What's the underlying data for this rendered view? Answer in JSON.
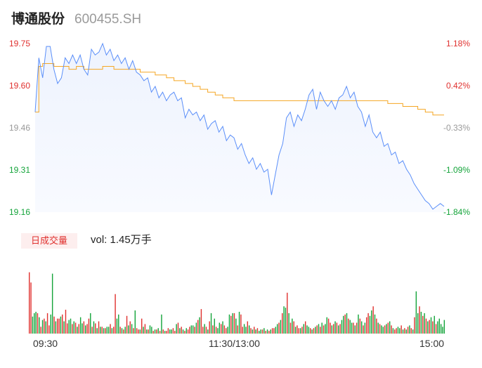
{
  "header": {
    "name": "博通股份",
    "code": "600455.SH"
  },
  "chart_data": {
    "type": "line",
    "price_axis": {
      "ticks": [
        "19.75",
        "19.60",
        "19.46",
        "19.31",
        "19.16"
      ],
      "pct_ticks": [
        "1.18%",
        "0.42%",
        "-0.33%",
        "-1.09%",
        "-1.84%"
      ],
      "tick_colors": [
        "#e0312f",
        "#e0312f",
        "#999999",
        "#14a43a",
        "#14a43a"
      ],
      "range": [
        19.16,
        19.75
      ],
      "prev_close": 19.52
    },
    "series": [
      {
        "color": "#5b8ff9",
        "values": [
          19.51,
          19.7,
          19.63,
          19.74,
          19.74,
          19.66,
          19.61,
          19.63,
          19.7,
          19.68,
          19.71,
          19.68,
          19.71,
          19.66,
          19.64,
          19.73,
          19.71,
          19.72,
          19.75,
          19.71,
          19.73,
          19.69,
          19.71,
          19.68,
          19.7,
          19.66,
          19.69,
          19.65,
          19.64,
          19.62,
          19.63,
          19.58,
          19.6,
          19.56,
          19.58,
          19.55,
          19.57,
          19.58,
          19.55,
          19.56,
          19.49,
          19.52,
          19.5,
          19.51,
          19.48,
          19.5,
          19.45,
          19.47,
          19.48,
          19.44,
          19.46,
          19.41,
          19.43,
          19.42,
          19.38,
          19.4,
          19.36,
          19.33,
          19.35,
          19.31,
          19.33,
          19.3,
          19.31,
          19.22,
          19.29,
          19.36,
          19.4,
          19.49,
          19.51,
          19.46,
          19.5,
          19.48,
          19.52,
          19.57,
          19.59,
          19.52,
          19.58,
          19.55,
          19.53,
          19.55,
          19.52,
          19.56,
          19.57,
          19.6,
          19.56,
          19.58,
          19.53,
          19.51,
          19.46,
          19.5,
          19.44,
          19.42,
          19.44,
          19.39,
          19.4,
          19.36,
          19.37,
          19.33,
          19.34,
          19.31,
          19.29,
          19.26,
          19.24,
          19.22,
          19.2,
          19.19,
          19.17,
          19.18,
          19.19,
          19.18
        ],
        "smooth": false
      },
      {
        "color": "#f5a623",
        "values": [
          19.51,
          19.67,
          19.68,
          19.68,
          19.68,
          19.67,
          19.67,
          19.67,
          19.67,
          19.66,
          19.66,
          19.67,
          19.67,
          19.66,
          19.66,
          19.66,
          19.66,
          19.66,
          19.67,
          19.67,
          19.67,
          19.66,
          19.66,
          19.66,
          19.66,
          19.66,
          19.66,
          19.66,
          19.65,
          19.65,
          19.65,
          19.65,
          19.64,
          19.64,
          19.64,
          19.63,
          19.63,
          19.62,
          19.62,
          19.62,
          19.61,
          19.61,
          19.6,
          19.6,
          19.59,
          19.59,
          19.58,
          19.58,
          19.57,
          19.57,
          19.56,
          19.56,
          19.56,
          19.55,
          19.55,
          19.55,
          19.55,
          19.55,
          19.55,
          19.55,
          19.55,
          19.55,
          19.55,
          19.55,
          19.55,
          19.55,
          19.55,
          19.55,
          19.55,
          19.55,
          19.55,
          19.55,
          19.55,
          19.55,
          19.55,
          19.55,
          19.55,
          19.55,
          19.55,
          19.55,
          19.55,
          19.55,
          19.55,
          19.55,
          19.55,
          19.55,
          19.55,
          19.55,
          19.55,
          19.55,
          19.55,
          19.55,
          19.55,
          19.55,
          19.54,
          19.54,
          19.54,
          19.54,
          19.53,
          19.53,
          19.53,
          19.53,
          19.52,
          19.52,
          19.51,
          19.51,
          19.5,
          19.5,
          19.5,
          19.5
        ]
      }
    ],
    "volume": {
      "tag": "日成交量",
      "summary": "vol: 1.45万手",
      "bar_colors": {
        "up": "#e0312f",
        "down": "#14a43a"
      },
      "values": [
        0.9,
        0.75,
        0.25,
        0.3,
        0.32,
        0.3,
        0.24,
        0.1,
        0.2,
        0.22,
        0.18,
        0.3,
        0.12,
        0.28,
        0.88,
        0.25,
        0.18,
        0.22,
        0.22,
        0.25,
        0.28,
        0.18,
        0.35,
        0.15,
        0.2,
        0.22,
        0.14,
        0.18,
        0.16,
        0.1,
        0.14,
        0.24,
        0.15,
        0.18,
        0.12,
        0.14,
        0.22,
        0.3,
        0.1,
        0.18,
        0.15,
        0.08,
        0.18,
        0.1,
        0.1,
        0.08,
        0.08,
        0.1,
        0.1,
        0.14,
        0.08,
        0.1,
        0.58,
        0.22,
        0.28,
        0.1,
        0.08,
        0.06,
        0.1,
        0.26,
        0.12,
        0.18,
        0.14,
        0.08,
        0.34,
        0.08,
        0.06,
        0.06,
        0.22,
        0.1,
        0.14,
        0.06,
        0.06,
        0.12,
        0.1,
        0.04,
        0.06,
        0.06,
        0.08,
        0.04,
        0.28,
        0.06,
        0.04,
        0.04,
        0.08,
        0.06,
        0.06,
        0.08,
        0.04,
        0.14,
        0.16,
        0.08,
        0.1,
        0.06,
        0.04,
        0.08,
        0.06,
        0.1,
        0.12,
        0.12,
        0.1,
        0.16,
        0.2,
        0.24,
        0.36,
        0.1,
        0.14,
        0.1,
        0.06,
        0.18,
        0.3,
        0.12,
        0.22,
        0.1,
        0.08,
        0.16,
        0.14,
        0.18,
        0.12,
        0.08,
        0.1,
        0.28,
        0.26,
        0.3,
        0.3,
        0.22,
        0.12,
        0.32,
        0.28,
        0.1,
        0.14,
        0.1,
        0.18,
        0.12,
        0.08,
        0.06,
        0.1,
        0.06,
        0.08,
        0.04,
        0.06,
        0.06,
        0.08,
        0.04,
        0.06,
        0.04,
        0.06,
        0.08,
        0.08,
        0.1,
        0.14,
        0.16,
        0.2,
        0.3,
        0.4,
        0.38,
        0.6,
        0.3,
        0.16,
        0.22,
        0.18,
        0.1,
        0.12,
        0.08,
        0.08,
        0.1,
        0.14,
        0.18,
        0.12,
        0.1,
        0.08,
        0.06,
        0.08,
        0.1,
        0.12,
        0.14,
        0.1,
        0.16,
        0.12,
        0.14,
        0.24,
        0.22,
        0.16,
        0.12,
        0.14,
        0.18,
        0.16,
        0.12,
        0.14,
        0.2,
        0.26,
        0.28,
        0.3,
        0.22,
        0.2,
        0.16,
        0.16,
        0.12,
        0.16,
        0.28,
        0.22,
        0.18,
        0.12,
        0.16,
        0.24,
        0.3,
        0.26,
        0.34,
        0.4,
        0.28,
        0.22,
        0.16,
        0.14,
        0.12,
        0.1,
        0.12,
        0.14,
        0.16,
        0.18,
        0.12,
        0.08,
        0.06,
        0.08,
        0.1,
        0.08,
        0.12,
        0.06,
        0.08,
        0.06,
        0.1,
        0.12,
        0.08,
        0.06,
        0.24,
        0.62,
        0.3,
        0.4,
        0.32,
        0.26,
        0.3,
        0.22,
        0.18,
        0.2,
        0.24,
        0.18,
        0.26,
        0.14,
        0.18,
        0.22,
        0.14,
        0.1,
        0.2
      ],
      "up": [
        true,
        true,
        false,
        false,
        false,
        true,
        false,
        true,
        false,
        true,
        false,
        true,
        true,
        false,
        false,
        true,
        false,
        true,
        true,
        false,
        true,
        false,
        true,
        true,
        false,
        false,
        true,
        false,
        true,
        false,
        true,
        false,
        false,
        true,
        false,
        true,
        true,
        false,
        true,
        false,
        true,
        false,
        true,
        false,
        true,
        false,
        true,
        false,
        false,
        true,
        false,
        true,
        true,
        false,
        false,
        true,
        false,
        true,
        false,
        true,
        false,
        true,
        false,
        true,
        false,
        true,
        true,
        false,
        true,
        false,
        true,
        false,
        true,
        false,
        false,
        true,
        false,
        true,
        false,
        true,
        false,
        true,
        false,
        true,
        true,
        false,
        false,
        true,
        true,
        false,
        true,
        false,
        true,
        false,
        true,
        false,
        true,
        true,
        false,
        false,
        true,
        false,
        true,
        false,
        true,
        true,
        false,
        true,
        false,
        true,
        false,
        true,
        false,
        true,
        false,
        false,
        true,
        false,
        true,
        true,
        false,
        false,
        true,
        false,
        true,
        false,
        true,
        false,
        true,
        true,
        false,
        false,
        true,
        false,
        true,
        false,
        true,
        false,
        true,
        false,
        false,
        true,
        false,
        true,
        false,
        true,
        false,
        true,
        true,
        false,
        false,
        true,
        false,
        true,
        false,
        false,
        true,
        false,
        true,
        false,
        true,
        false,
        true,
        true,
        false,
        true,
        false,
        true,
        false,
        false,
        true,
        false,
        true,
        false,
        true,
        false,
        true,
        false,
        true,
        false,
        false,
        true,
        true,
        false,
        true,
        false,
        true,
        false,
        true,
        false,
        false,
        true,
        false,
        true,
        false,
        false,
        true,
        false,
        true,
        false,
        true,
        false,
        true,
        false,
        true,
        true,
        false,
        false,
        true,
        false,
        true,
        false,
        true,
        false,
        false,
        true,
        false,
        true,
        false,
        true,
        false,
        true,
        true,
        false,
        false,
        true,
        false,
        true,
        false,
        true,
        false,
        true,
        false,
        true,
        false,
        false,
        true,
        false,
        true,
        false,
        true,
        false,
        true,
        false,
        true,
        false,
        true
      ]
    },
    "x_ticks": [
      "09:30",
      "11:30/13:00",
      "15:00"
    ]
  }
}
